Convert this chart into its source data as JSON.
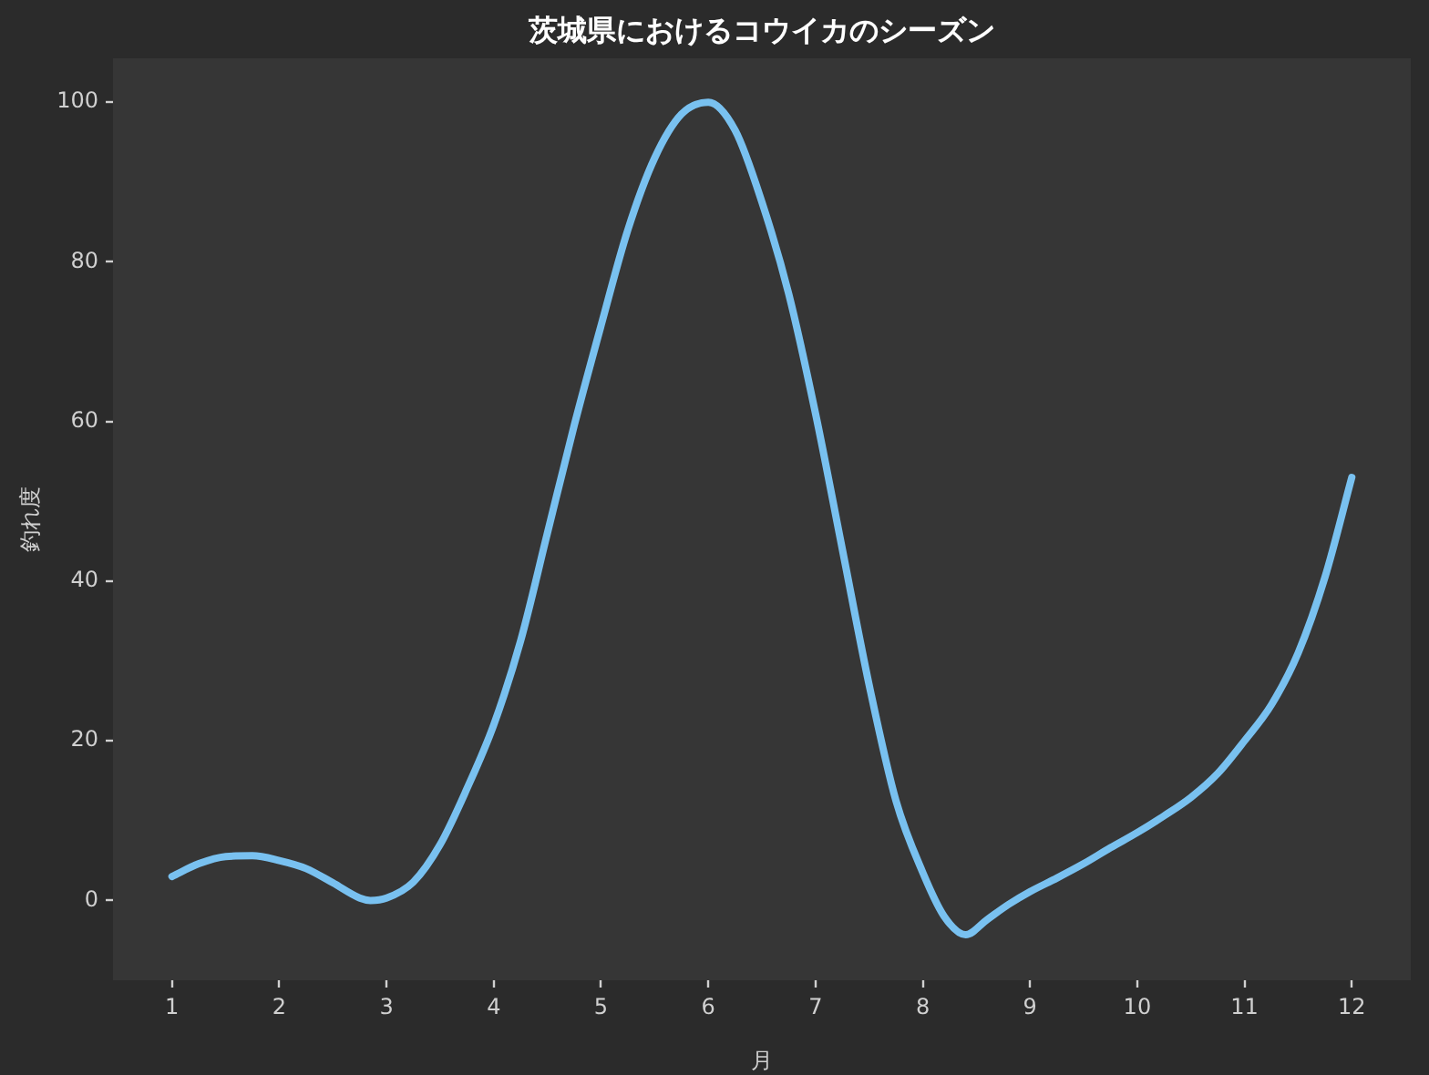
{
  "chart_data": {
    "type": "line",
    "title": "茨城県におけるコウイカのシーズン",
    "xlabel": "月",
    "ylabel": "釣れ度",
    "x": [
      1,
      1.25,
      1.5,
      1.75,
      2,
      2.25,
      2.5,
      2.75,
      2.85,
      3,
      3.25,
      3.5,
      3.75,
      4,
      4.25,
      4.5,
      4.75,
      5,
      5.25,
      5.5,
      5.75,
      6,
      6.25,
      6.5,
      6.75,
      7,
      7.25,
      7.5,
      7.75,
      8,
      8.2,
      8.4,
      8.6,
      8.8,
      9,
      9.25,
      9.5,
      9.75,
      10,
      10.25,
      10.5,
      10.75,
      11,
      11.25,
      11.5,
      11.75,
      12
    ],
    "series": [
      {
        "color": "#79c1f0",
        "values": [
          3,
          4.6,
          5.5,
          5.6,
          5,
          4,
          2.2,
          0.3,
          0,
          0.3,
          2.3,
          7,
          14,
          22,
          32.5,
          46,
          59.5,
          72,
          84,
          93,
          98.5,
          100,
          96.5,
          87.5,
          76,
          61,
          44,
          27,
          12.5,
          3.5,
          -2,
          -4.3,
          -2.4,
          -0.5,
          1.1,
          2.8,
          4.6,
          6.6,
          8.5,
          10.6,
          12.9,
          15.9,
          20,
          24.5,
          31,
          40.5,
          53
        ]
      }
    ],
    "xlim": [
      0.45,
      12.55
    ],
    "xticks": [
      1,
      2,
      3,
      4,
      5,
      6,
      7,
      8,
      9,
      10,
      11,
      12
    ],
    "ylim": [
      -10,
      105.5
    ],
    "yticks": [
      0,
      20,
      40,
      60,
      80,
      100
    ],
    "grid": false,
    "legend": false,
    "marker": "none",
    "line_style": "solid"
  }
}
